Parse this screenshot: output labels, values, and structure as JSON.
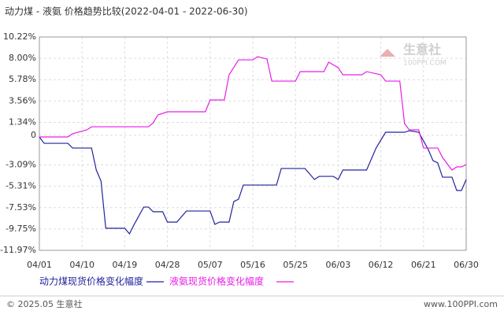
{
  "chart_data": {
    "type": "line",
    "title": "动力煤 - 液氨 价格趋势比较(2022-04-01 - 2022-06-30)",
    "watermark": "生意社",
    "watermark_sub": "100PPI.COM",
    "copyright": "© 2025.05 生意社",
    "source_url": "www.100PPI.com",
    "ylim": [
      -11.97,
      10.22
    ],
    "yticks": [
      {
        "value": 10.22,
        "label": "10.22%"
      },
      {
        "value": 8.0,
        "label": "8.00%"
      },
      {
        "value": 5.78,
        "label": "5.78%"
      },
      {
        "value": 3.56,
        "label": "3.56%"
      },
      {
        "value": 1.34,
        "label": "1.34%"
      },
      0,
      {
        "value": -3.09,
        "label": "-3.09%"
      },
      {
        "value": -5.31,
        "label": "-5.31%"
      },
      {
        "value": -7.53,
        "label": "-7.53%"
      },
      {
        "value": -9.75,
        "label": "-9.75%"
      },
      {
        "value": -11.97,
        "label": "-11.97%"
      }
    ],
    "xlim": [
      "04/01",
      "06/30"
    ],
    "xticks": [
      "04/01",
      "04/10",
      "04/19",
      "04/28",
      "05/07",
      "05/16",
      "05/25",
      "06/03",
      "06/12",
      "06/21",
      "06/30"
    ],
    "grid": true,
    "series": [
      {
        "name": "动力煤现货价格变化幅度",
        "color": "#22229e",
        "x": [
          "04/01",
          "04/02",
          "04/07",
          "04/08",
          "04/12",
          "04/13",
          "04/14",
          "04/15",
          "04/19",
          "04/20",
          "04/21",
          "04/23",
          "04/24",
          "04/25",
          "04/27",
          "04/28",
          "04/30",
          "05/02",
          "05/07",
          "05/08",
          "05/09",
          "05/11",
          "05/12",
          "05/13",
          "05/14",
          "05/21",
          "05/22",
          "05/27",
          "05/28",
          "05/29",
          "05/30",
          "06/02",
          "06/03",
          "06/04",
          "06/09",
          "06/11",
          "06/13",
          "06/17",
          "06/18",
          "06/20",
          "06/22",
          "06/23",
          "06/24",
          "06/25",
          "06/27",
          "06/28",
          "06/29",
          "06/30"
        ],
        "values": [
          -0.18,
          -0.84,
          -0.84,
          -1.33,
          -1.33,
          -3.62,
          -4.77,
          -9.68,
          -9.68,
          -10.25,
          -9.27,
          -7.47,
          -7.47,
          -7.96,
          -7.96,
          -9.03,
          -9.03,
          -7.88,
          -7.88,
          -9.27,
          -9.03,
          -9.03,
          -6.9,
          -6.65,
          -5.18,
          -5.18,
          -3.46,
          -3.46,
          -4.03,
          -4.6,
          -4.28,
          -4.28,
          -4.6,
          -3.62,
          -3.62,
          -1.33,
          0.31,
          0.31,
          0.47,
          0.31,
          -1.49,
          -2.64,
          -2.88,
          -4.36,
          -4.36,
          -5.75,
          -5.75,
          -4.6
        ]
      },
      {
        "name": "液氨现货价格变化幅度",
        "color": "#e61ee6",
        "x": [
          "04/01",
          "04/07",
          "04/08",
          "04/11",
          "04/12",
          "04/24",
          "04/25",
          "04/26",
          "04/28",
          "05/06",
          "05/07",
          "05/10",
          "05/11",
          "05/13",
          "05/16",
          "05/17",
          "05/19",
          "05/20",
          "05/25",
          "05/26",
          "05/31",
          "06/01",
          "06/03",
          "06/04",
          "06/08",
          "06/09",
          "06/12",
          "06/13",
          "06/16",
          "06/17",
          "06/18",
          "06/20",
          "06/21",
          "06/24",
          "06/25",
          "06/27",
          "06/28",
          "06/29",
          "06/30"
        ],
        "values": [
          -0.18,
          -0.18,
          0.15,
          0.56,
          0.88,
          0.88,
          1.29,
          2.11,
          2.44,
          2.44,
          3.67,
          3.67,
          6.29,
          7.84,
          7.84,
          8.17,
          7.93,
          5.63,
          5.63,
          6.62,
          6.62,
          7.6,
          7.03,
          6.29,
          6.29,
          6.62,
          6.29,
          5.63,
          5.63,
          1.21,
          0.56,
          0.56,
          -1.33,
          -1.33,
          -2.31,
          -3.62,
          -3.29,
          -3.29,
          -3.05
        ]
      }
    ]
  }
}
